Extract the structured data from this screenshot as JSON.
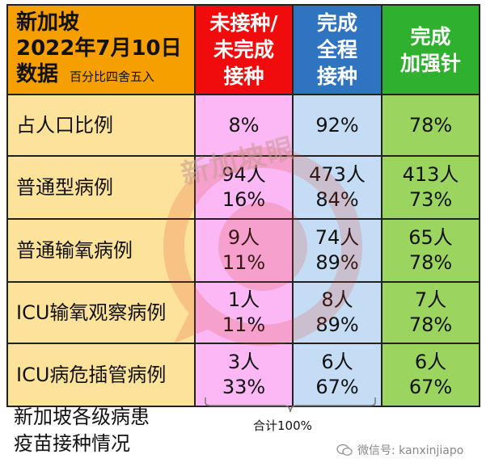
{
  "header": {
    "title_line1": "新加坡",
    "title_line2": "2022年7月10日",
    "title_line3": "数据",
    "rounding_note": "百分比四舍五入",
    "col1_line1": "未接种/",
    "col1_line2": "未完成",
    "col1_line3": "接种",
    "col2_line1": "完成",
    "col2_line2": "全程",
    "col2_line3": "接种",
    "col3_line1": "完成",
    "col3_line2": "加强针"
  },
  "rows": [
    {
      "label": "占人口比例",
      "c1a": "8%",
      "c1b": "",
      "c2a": "92%",
      "c2b": "",
      "c3a": "78%",
      "c3b": ""
    },
    {
      "label": "普通型病例",
      "c1a": "94人",
      "c1b": "16%",
      "c2a": "473人",
      "c2b": "84%",
      "c3a": "413人",
      "c3b": "73%"
    },
    {
      "label": "普通输氧病例",
      "c1a": "9人",
      "c1b": "11%",
      "c2a": "74人",
      "c2b": "89%",
      "c3a": "65人",
      "c3b": "78%"
    },
    {
      "label": "ICU输氧观察病例",
      "c1a": "1人",
      "c1b": "11%",
      "c2a": "8人",
      "c2b": "89%",
      "c3a": "7人",
      "c3b": "78%"
    },
    {
      "label": "ICU病危插管病例",
      "c1a": "3人",
      "c1b": "33%",
      "c2a": "6人",
      "c2b": "67%",
      "c3a": "6人",
      "c3b": "67%"
    }
  ],
  "caption": {
    "line1": "新加坡各级病患",
    "line2": "疫苗接种情况"
  },
  "total_note": "合计100%",
  "watermark": "新加坡眼",
  "wechat": "微信号: kanxinjiapo",
  "colors": {
    "header_orange": "#f5a000",
    "unvaccinated_red": "#f00c0c",
    "full_blue": "#2f74c0",
    "booster_green": "#2fb02f"
  }
}
